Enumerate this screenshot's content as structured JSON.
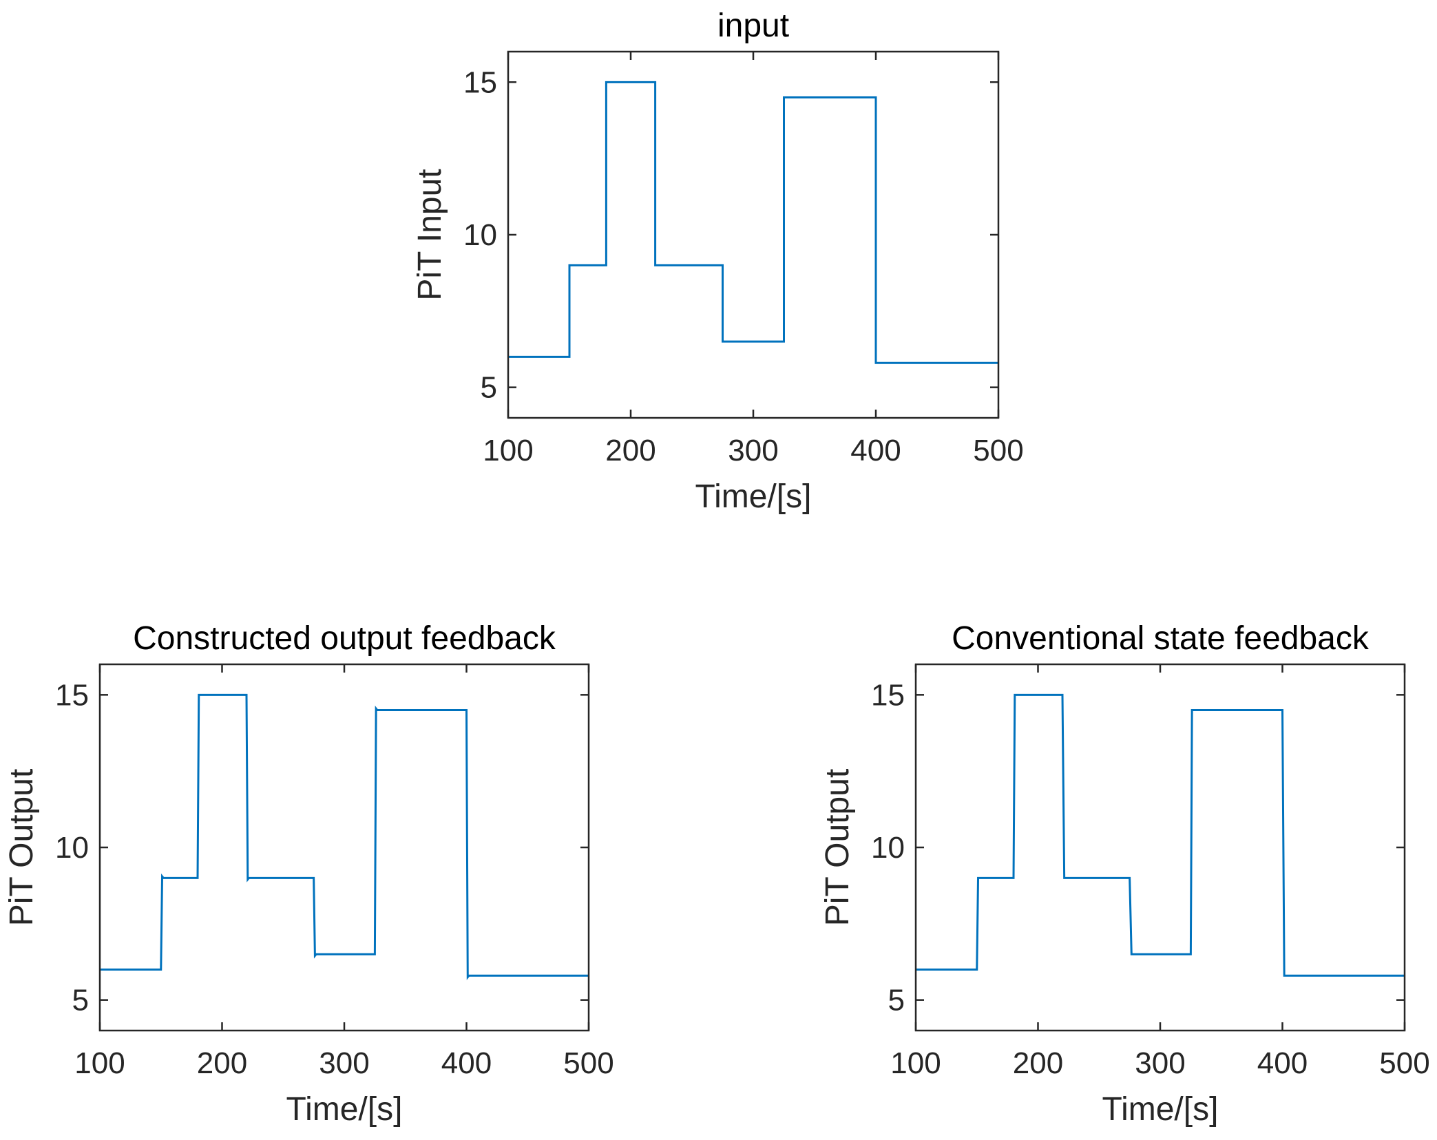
{
  "chart_data": [
    {
      "type": "line",
      "title": "input",
      "xlabel": "Time/[s]",
      "ylabel": "PiT Input",
      "xlim": [
        100,
        500
      ],
      "ylim": [
        4,
        16
      ],
      "xticks": [
        100,
        200,
        300,
        400,
        500
      ],
      "yticks": [
        5,
        10,
        15
      ],
      "grid": false,
      "color": "#0072BD",
      "series": [
        {
          "x": [
            100,
            150,
            150,
            180,
            180,
            220,
            220,
            275,
            275,
            325,
            325,
            400,
            400,
            500
          ],
          "y": [
            6,
            6,
            9,
            9,
            15,
            15,
            9,
            9,
            6.5,
            6.5,
            14.5,
            14.5,
            5.8,
            5.8
          ]
        }
      ]
    },
    {
      "type": "line",
      "title": "Constructed output feedback",
      "xlabel": "Time/[s]",
      "ylabel": "PiT Output",
      "xlim": [
        100,
        500
      ],
      "ylim": [
        4,
        16
      ],
      "xticks": [
        100,
        200,
        300,
        400,
        500
      ],
      "yticks": [
        5,
        10,
        15
      ],
      "grid": false,
      "color": "#0072BD",
      "series": [
        {
          "x": [
            100,
            150,
            151,
            152,
            180,
            181,
            220,
            221,
            222,
            275,
            276,
            277,
            325,
            326,
            327,
            400,
            401,
            402,
            500
          ],
          "y": [
            6,
            6,
            9.05,
            9,
            9,
            15,
            15,
            8.95,
            9,
            9,
            6.45,
            6.5,
            6.5,
            14.55,
            14.5,
            14.5,
            5.75,
            5.8,
            5.8
          ]
        }
      ]
    },
    {
      "type": "line",
      "title": "Conventional state feedback",
      "xlabel": "Time/[s]",
      "ylabel": "PiT Output",
      "xlim": [
        100,
        500
      ],
      "ylim": [
        4,
        16
      ],
      "xticks": [
        100,
        200,
        300,
        400,
        500
      ],
      "yticks": [
        5,
        10,
        15
      ],
      "grid": false,
      "color": "#0072BD",
      "series": [
        {
          "x": [
            100,
            150,
            151,
            180,
            181,
            220,
            221.5,
            275,
            276.5,
            325,
            326,
            400,
            401.5,
            500
          ],
          "y": [
            6,
            6,
            9,
            9,
            15,
            15,
            9,
            9,
            6.5,
            6.5,
            14.5,
            14.5,
            5.8,
            5.8
          ]
        }
      ]
    }
  ]
}
